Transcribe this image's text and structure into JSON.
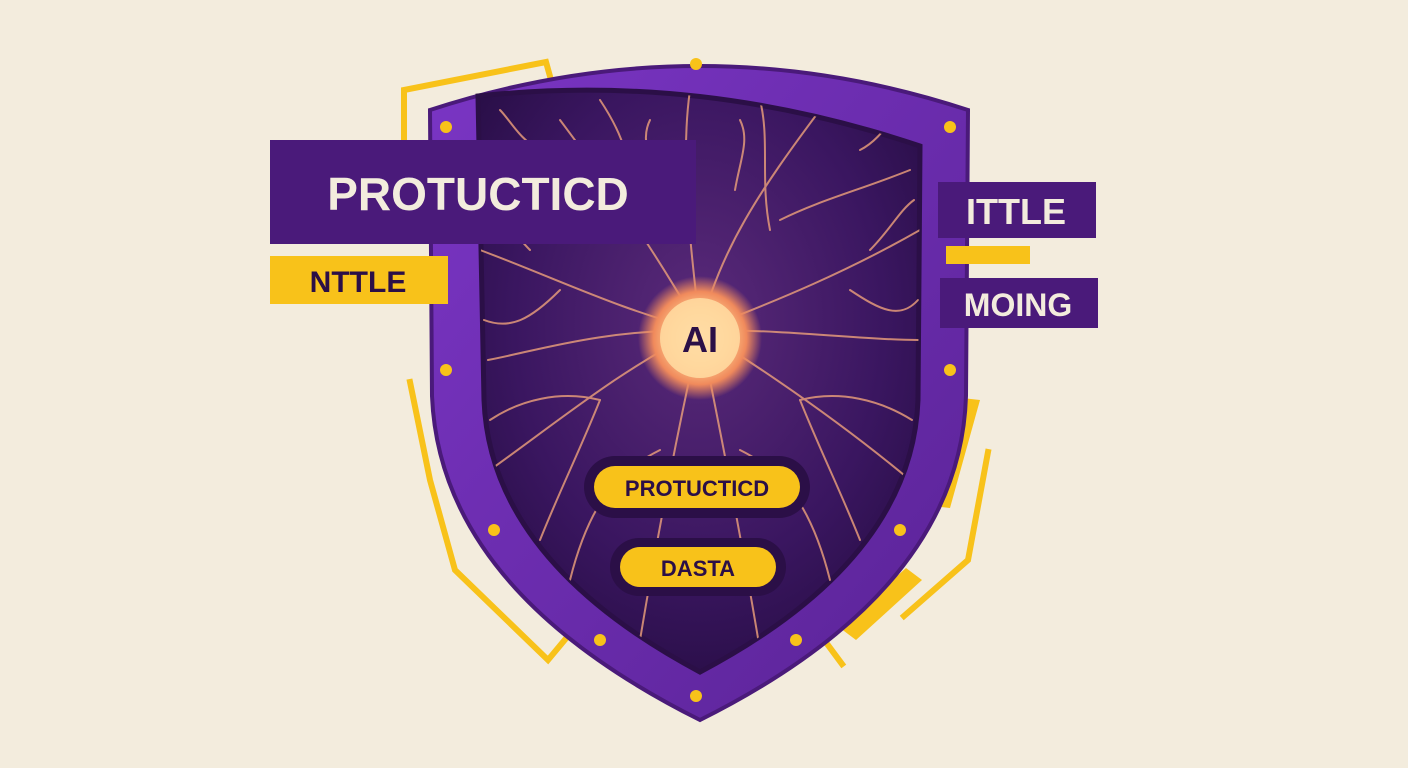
{
  "labels": {
    "main_title": "PROTUCTICD",
    "left_tag": "NTTLE",
    "right_top": "ITTLE",
    "right_bottom": "MOING",
    "core": "AI",
    "pill_top": "PROTUCTICD",
    "pill_bottom": "DASTA"
  },
  "colors": {
    "background": "#f3ecdd",
    "shield_purple": "#6b2bb0",
    "shield_dark": "#2b0f47",
    "banner_purple": "#4a1a7a",
    "accent_yellow": "#f8c21a",
    "neuron": "#e49a7a",
    "core_glow": "#ffd9a0"
  },
  "icons": [
    "shield-icon",
    "neural-network-icon",
    "ai-core-icon"
  ]
}
